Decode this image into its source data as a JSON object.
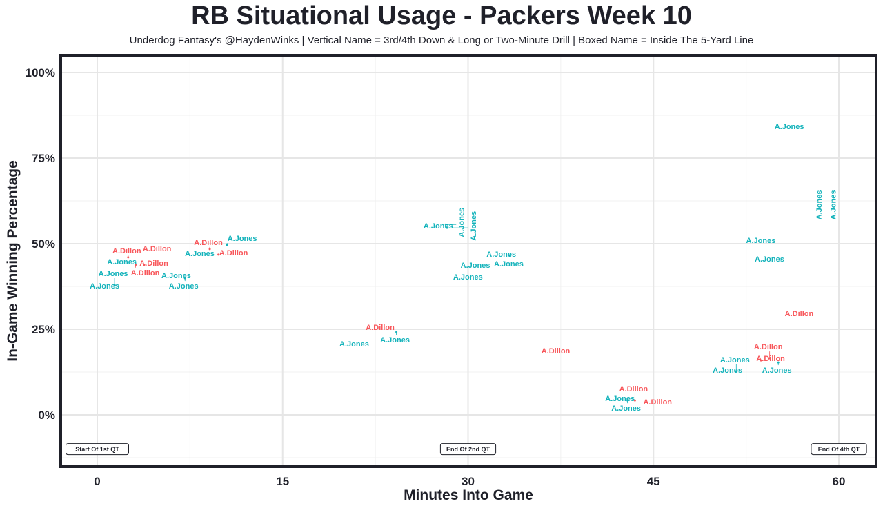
{
  "chart_data": {
    "type": "scatter",
    "title": "RB Situational Usage - Packers Week 10",
    "subtitle": "Underdog Fantasy's @HaydenWinks | Vertical Name = 3rd/4th Down & Long or Two-Minute Drill | Boxed Name = Inside The 5-Yard Line",
    "xlabel": "Minutes Into Game",
    "ylabel": "In-Game Winning Percentage",
    "xlim": [
      -3,
      63
    ],
    "ylim": [
      -15,
      104
    ],
    "xticks": [
      0,
      15,
      30,
      45,
      60
    ],
    "xtick_labels": [
      "0",
      "15",
      "30",
      "45",
      "60"
    ],
    "yticks": [
      0,
      25,
      50,
      75,
      100
    ],
    "ytick_labels": [
      "0%",
      "25%",
      "50%",
      "75%",
      "100%"
    ],
    "grid": true,
    "colors": {
      "A.Dillon": "#f8575b",
      "A.Jones": "#14b3bb"
    },
    "annotations": [
      {
        "text": "Start Of 1st QT",
        "x": 0,
        "y": -10
      },
      {
        "text": "End Of 2nd QT",
        "x": 30,
        "y": -10
      },
      {
        "text": "End Of 4th QT",
        "x": 60,
        "y": -10
      }
    ],
    "points": [
      {
        "name": "A.Jones",
        "x": 0.7,
        "y": 37.1,
        "vertical": false
      },
      {
        "name": "A.Jones",
        "x": 1.4,
        "y": 37.9,
        "vertical": false
      },
      {
        "name": "A.Jones",
        "x": 2.1,
        "y": 41.3,
        "vertical": false
      },
      {
        "name": "A.Dillon",
        "x": 2.5,
        "y": 46.0,
        "vertical": false
      },
      {
        "name": "A.Dillon",
        "x": 3.1,
        "y": 43.8,
        "vertical": false
      },
      {
        "name": "A.Dillon",
        "x": 3.8,
        "y": 43.8,
        "vertical": false
      },
      {
        "name": "A.Dillon",
        "x": 4.5,
        "y": 48.0,
        "vertical": false
      },
      {
        "name": "A.Jones",
        "x": 6.5,
        "y": 41.5,
        "vertical": false
      },
      {
        "name": "A.Jones",
        "x": 7.1,
        "y": 39.9,
        "vertical": false
      },
      {
        "name": "A.Jones",
        "x": 8.4,
        "y": 46.6,
        "vertical": false
      },
      {
        "name": "A.Dillon",
        "x": 9.1,
        "y": 48.4,
        "vertical": false
      },
      {
        "name": "A.Dillon",
        "x": 9.8,
        "y": 46.8,
        "vertical": false
      },
      {
        "name": "A.Jones",
        "x": 10.5,
        "y": 49.6,
        "vertical": false
      },
      {
        "name": "A.Jones",
        "x": 20.9,
        "y": 20.2,
        "vertical": false
      },
      {
        "name": "A.Dillon",
        "x": 23.0,
        "y": 25.0,
        "vertical": false
      },
      {
        "name": "A.Jones",
        "x": 24.2,
        "y": 24.2,
        "vertical": false
      },
      {
        "name": "A.Jones",
        "x": 27.7,
        "y": 54.6,
        "vertical": false
      },
      {
        "name": "A.Jones",
        "x": 28.2,
        "y": 55.6,
        "vertical": true
      },
      {
        "name": "A.Jones",
        "x": 28.3,
        "y": 54.6,
        "vertical": true
      },
      {
        "name": "A.Jones",
        "x": 30.1,
        "y": 39.7,
        "vertical": false
      },
      {
        "name": "A.Jones",
        "x": 30.7,
        "y": 43.1,
        "vertical": false
      },
      {
        "name": "A.Jones",
        "x": 32.8,
        "y": 46.4,
        "vertical": false
      },
      {
        "name": "A.Jones",
        "x": 33.4,
        "y": 46.4,
        "vertical": false
      },
      {
        "name": "A.Dillon",
        "x": 37.2,
        "y": 18.1,
        "vertical": false
      },
      {
        "name": "A.Jones",
        "x": 42.4,
        "y": 4.2,
        "vertical": false
      },
      {
        "name": "A.Jones",
        "x": 42.9,
        "y": 4.2,
        "vertical": false
      },
      {
        "name": "A.Dillon",
        "x": 43.5,
        "y": 4.2,
        "vertical": false
      },
      {
        "name": "A.Dillon",
        "x": 45.0,
        "y": 4.6,
        "vertical": false
      },
      {
        "name": "A.Jones",
        "x": 51.1,
        "y": 12.5,
        "vertical": false
      },
      {
        "name": "A.Jones",
        "x": 51.7,
        "y": 12.7,
        "vertical": false
      },
      {
        "name": "A.Jones",
        "x": 53.8,
        "y": 50.4,
        "vertical": false
      },
      {
        "name": "A.Dillon",
        "x": 53.7,
        "y": 15.9,
        "vertical": false
      },
      {
        "name": "A.Dillon",
        "x": 54.4,
        "y": 16.5,
        "vertical": false
      },
      {
        "name": "A.Jones",
        "x": 54.5,
        "y": 45.0,
        "vertical": false
      },
      {
        "name": "A.Jones",
        "x": 55.1,
        "y": 15.3,
        "vertical": false
      },
      {
        "name": "A.Jones",
        "x": 56.1,
        "y": 83.7,
        "vertical": false
      },
      {
        "name": "A.Dillon",
        "x": 56.9,
        "y": 29.0,
        "vertical": false
      },
      {
        "name": "A.Jones",
        "x": 58.5,
        "y": 60.7,
        "vertical": true
      },
      {
        "name": "A.Jones",
        "x": 59.2,
        "y": 60.7,
        "vertical": true
      }
    ]
  }
}
